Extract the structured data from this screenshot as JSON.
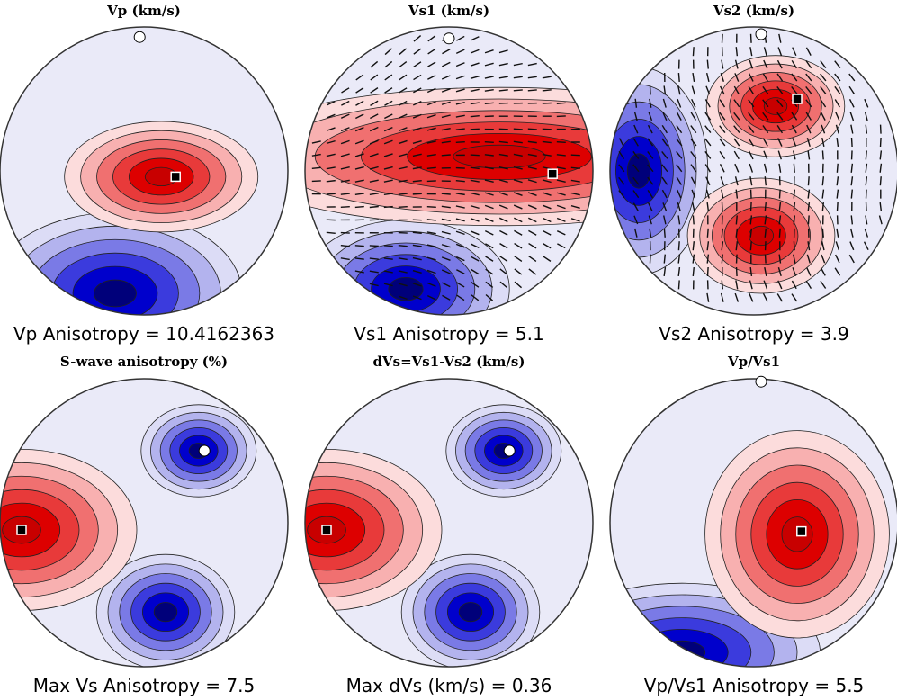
{
  "chart_data": [
    {
      "type": "heatmap",
      "projection": "stereonet",
      "title": "Vp (km/s)",
      "caption_label": "Vp Anisotropy",
      "caption_value": "10.4162363",
      "hot_center": [
        0.12,
        0.04
      ],
      "hot_spread": [
        0.42,
        0.24
      ],
      "cold_center": [
        -0.2,
        0.85
      ],
      "cold_spread": [
        0.55,
        0.35
      ],
      "min_marker": "dot",
      "max_marker": "square",
      "min_location": [
        -0.03,
        -0.93
      ],
      "max_location": [
        0.22,
        0.04
      ],
      "ticks": false,
      "colors": {
        "hot": "#dd0000",
        "cold": "#00007a",
        "mid": "#ffffff"
      }
    },
    {
      "type": "heatmap",
      "projection": "stereonet",
      "title": "Vs1 (km/s)",
      "caption_label": "Vs1 Anisotropy",
      "caption_value": "5.1",
      "hot_center": [
        0.35,
        -0.1
      ],
      "hot_spread": [
        1.2,
        0.3
      ],
      "cold_center": [
        -0.3,
        0.82
      ],
      "cold_spread": [
        0.45,
        0.3
      ],
      "min_marker": "dot",
      "max_marker": "square",
      "min_location": [
        0.0,
        -0.92
      ],
      "max_location": [
        0.72,
        0.02
      ],
      "ticks": true,
      "colors": {
        "hot": "#dd0000",
        "cold": "#00007a",
        "mid": "#ffffff"
      }
    },
    {
      "type": "heatmap",
      "projection": "stereonet",
      "title": "Vs2 (km/s)",
      "caption_label": "Vs2 Anisotropy",
      "caption_value": "3.9",
      "hot_center": [
        0.15,
        -0.45
      ],
      "hot_spread": [
        0.3,
        0.22
      ],
      "hot2_center": [
        0.05,
        0.45
      ],
      "hot2_spread": [
        0.32,
        0.25
      ],
      "cold_center": [
        -0.8,
        0.0
      ],
      "cold_spread": [
        0.3,
        0.45
      ],
      "min_marker": "dot",
      "max_marker": "square",
      "min_location": [
        0.05,
        -0.95
      ],
      "max_location": [
        0.3,
        -0.5
      ],
      "ticks": true,
      "colors": {
        "hot": "#dd0000",
        "cold": "#00007a",
        "mid": "#ffffff"
      }
    },
    {
      "type": "heatmap",
      "projection": "stereonet",
      "title": "S-wave anisotropy (%)",
      "caption_label": "Max Vs Anisotropy",
      "caption_value": "7.5",
      "hot_center": [
        -0.85,
        0.05
      ],
      "hot_spread": [
        0.5,
        0.35
      ],
      "cold_center": [
        0.38,
        -0.5
      ],
      "cold_spread": [
        0.25,
        0.2
      ],
      "cold2_center": [
        0.15,
        0.62
      ],
      "cold2_spread": [
        0.3,
        0.25
      ],
      "min_marker": "dot",
      "max_marker": "square",
      "min_location": [
        0.42,
        -0.5
      ],
      "max_location": [
        -0.85,
        0.05
      ],
      "ticks": false,
      "colors": {
        "hot": "#dd0000",
        "cold": "#00007a",
        "mid": "#ffffff"
      }
    },
    {
      "type": "heatmap",
      "projection": "stereonet",
      "title": "dVs=Vs1-Vs2 (km/s)",
      "caption_label": "Max dVs (km/s)",
      "caption_value": "0.36",
      "hot_center": [
        -0.85,
        0.05
      ],
      "hot_spread": [
        0.5,
        0.35
      ],
      "cold_center": [
        0.38,
        -0.5
      ],
      "cold_spread": [
        0.25,
        0.2
      ],
      "cold2_center": [
        0.15,
        0.62
      ],
      "cold2_spread": [
        0.3,
        0.25
      ],
      "min_marker": "dot",
      "max_marker": "square",
      "min_location": [
        0.42,
        -0.5
      ],
      "max_location": [
        -0.85,
        0.05
      ],
      "ticks": false,
      "colors": {
        "hot": "#dd0000",
        "cold": "#00007a",
        "mid": "#ffffff"
      }
    },
    {
      "type": "heatmap",
      "projection": "stereonet",
      "title": "Vp/Vs1",
      "caption_label": "Vp/Vs1 Anisotropy",
      "caption_value": "5.5",
      "hot_center": [
        0.3,
        0.08
      ],
      "hot_spread": [
        0.4,
        0.45
      ],
      "cold_center": [
        -0.5,
        0.9
      ],
      "cold_spread": [
        0.6,
        0.3
      ],
      "min_marker": "dot",
      "max_marker": "square",
      "min_location": [
        0.05,
        -0.98
      ],
      "max_location": [
        0.33,
        0.06
      ],
      "ticks": false,
      "colors": {
        "hot": "#dd0000",
        "cold": "#00007a",
        "mid": "#ffffff"
      }
    }
  ]
}
